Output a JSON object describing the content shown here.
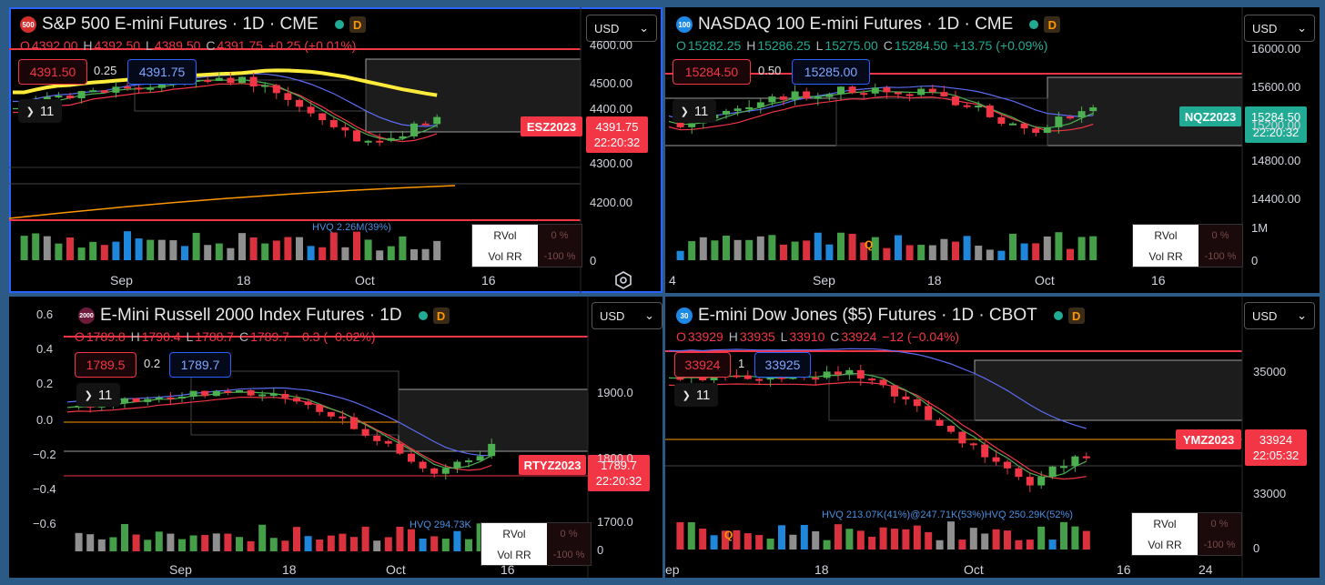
{
  "colors": {
    "up": "#4caf50",
    "down": "#f23645",
    "ema_yellow": "#ffeb3b",
    "orange": "#ff9800",
    "blue": "#5b6cf2",
    "accent": "#2962ff"
  },
  "panes": [
    {
      "id": "es",
      "badge": "500",
      "badge_color": "#d32f2f",
      "title": "S&P 500 E-mini Futures · 1D · CME",
      "ohlc": {
        "o": "4392.00",
        "h": "4392.50",
        "l": "4389.50",
        "c": "4391.75",
        "chg": "+0.25 (+0.01%)",
        "dir": "up"
      },
      "bid": "4391.50",
      "spread": "0.25",
      "ask": "4391.75",
      "ma_count": "11",
      "currency": "USD",
      "symbol": "ESZ2023",
      "price": "4391.75",
      "countdown": "22:20:32",
      "y_labels": [
        "4600.00",
        "4500.00",
        "4400.00",
        "4300.00",
        "4200.00",
        "0"
      ],
      "x_labels": [
        "Sep",
        "18",
        "Oct",
        "16"
      ],
      "hvq": "HVQ 2.26M(39%)",
      "rvol": {
        "rvol_label": "RVol",
        "rvol_value": "0 %",
        "volrr_label": "Vol RR",
        "volrr_value": "-100 %"
      },
      "price_min": 4190,
      "price_max": 4620
    },
    {
      "id": "nq",
      "badge": "100",
      "badge_color": "#1e88e5",
      "title": "NASDAQ 100 E-mini Futures · 1D · CME",
      "ohlc": {
        "o": "15282.25",
        "h": "15286.25",
        "l": "15275.00",
        "c": "15284.50",
        "chg": "+13.75 (+0.09%)",
        "dir": "up"
      },
      "bid": "15284.50",
      "spread": "0.50",
      "ask": "15285.00",
      "ma_count": "11",
      "currency": "USD",
      "symbol": "NQZ2023",
      "price": "15284.50",
      "countdown": "22:20:32",
      "y_labels": [
        "16000.00",
        "15600.00",
        "15200.00",
        "14800.00",
        "14400.00",
        "1M",
        "0"
      ],
      "x_labels": [
        "4",
        "Sep",
        "18",
        "Oct",
        "16"
      ],
      "vol_marker": "Q",
      "rvol": {
        "rvol_label": "RVol",
        "rvol_value": "0 %",
        "volrr_label": "Vol RR",
        "volrr_value": "-100 %"
      },
      "price_min": 14300,
      "price_max": 16100
    },
    {
      "id": "rty",
      "badge": "2000",
      "badge_color": "#6d1b3a",
      "title": "E-Mini Russell 2000 Index Futures · 1D",
      "ohlc": {
        "o": "1789.8",
        "h": "1790.4",
        "l": "1788.7",
        "c": "1789.7",
        "chg": "−0.3 (−0.02%)",
        "dir": "down"
      },
      "bid": "1789.5",
      "spread": "0.2",
      "ask": "1789.7",
      "ma_count": "11",
      "currency": "USD",
      "symbol": "RTYZ2023",
      "price": "1789.7",
      "countdown": "22:20:32",
      "y_labels": [
        "1900.0",
        "1800.0",
        "1700.0",
        "0"
      ],
      "left_labels": [
        "0.6",
        "0.4",
        "0.2",
        "0.0",
        "−0.2",
        "−0.4",
        "−0.6"
      ],
      "x_labels": [
        "Sep",
        "18",
        "Oct",
        "16"
      ],
      "hvq": "HVQ 294.73K",
      "rvol": {
        "rvol_label": "RVol",
        "rvol_value": "0 %",
        "volrr_label": "Vol RR",
        "volrr_value": "-100 %"
      },
      "price_min": 1690,
      "price_max": 1960
    },
    {
      "id": "ym",
      "badge": "30",
      "badge_color": "#1e88e5",
      "title": "E-mini Dow Jones ($5) Futures · 1D · CBOT",
      "ohlc": {
        "o": "33929",
        "h": "33935",
        "l": "33910",
        "c": "33924",
        "chg": "−12 (−0.04%)",
        "dir": "down"
      },
      "bid": "33924",
      "spread": "1",
      "ask": "33925",
      "ma_count": "11",
      "currency": "USD",
      "symbol": "YMZ2023",
      "price": "33924",
      "countdown": "22:05:32",
      "y_labels": [
        "35000",
        "33000",
        "0"
      ],
      "x_labels": [
        "ep",
        "18",
        "Oct",
        "16",
        "24"
      ],
      "hvq": "HVQ 213.07K(41%)@247.71K(53%)HVQ 250.29K(52%)",
      "vol_marker": "Q",
      "rvol": {
        "rvol_label": "RVol",
        "rvol_value": "0 %",
        "volrr_label": "Vol RR",
        "volrr_value": "-100 %"
      },
      "price_min": 32700,
      "price_max": 35800
    }
  ],
  "icons": {
    "settings": "settings-hexagon-icon",
    "chevron": "chevron-down-icon"
  }
}
